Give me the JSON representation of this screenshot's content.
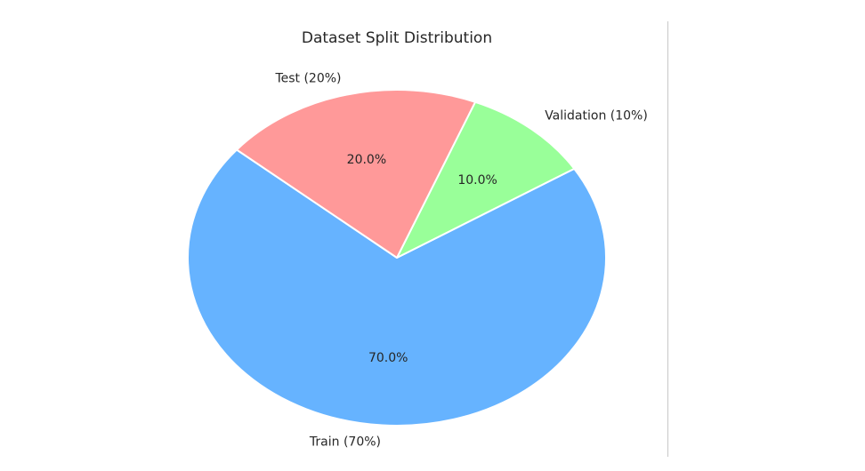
{
  "chart_data": {
    "type": "pie",
    "title": "Dataset Split Distribution",
    "slices": [
      {
        "label": "Train (70%)",
        "value": 70,
        "pct_label": "70.0%",
        "color": "#66b3ff"
      },
      {
        "label": "Validation (10%)",
        "value": 10,
        "pct_label": "10.0%",
        "color": "#99ff99"
      },
      {
        "label": "Test (20%)",
        "value": 20,
        "pct_label": "20.0%",
        "color": "#ff9999"
      }
    ],
    "start_angle_deg": 140,
    "direction": "counterclockwise",
    "edge_color": "#ffffff",
    "legend": "none"
  }
}
